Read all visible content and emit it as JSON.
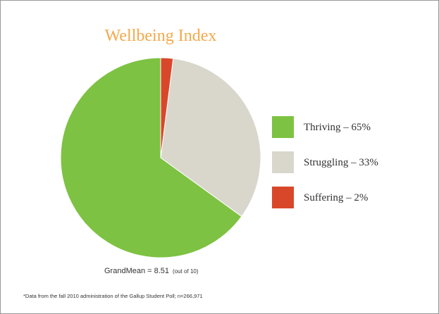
{
  "chart_data": {
    "type": "pie",
    "title": "Wellbeing Index",
    "categories": [
      "Thriving – 65%",
      "Struggling – 33%",
      "Suffering – 2%"
    ],
    "values": [
      65,
      33,
      2
    ],
    "colors": [
      "#7dc242",
      "#d9d7cc",
      "#d9472b"
    ],
    "note_main": "GrandMean = 8.51",
    "note_small": "(out of 10)",
    "footnote": "*Data from the fall 2010 administration of the Gallup Student Poll; n=266,971"
  }
}
